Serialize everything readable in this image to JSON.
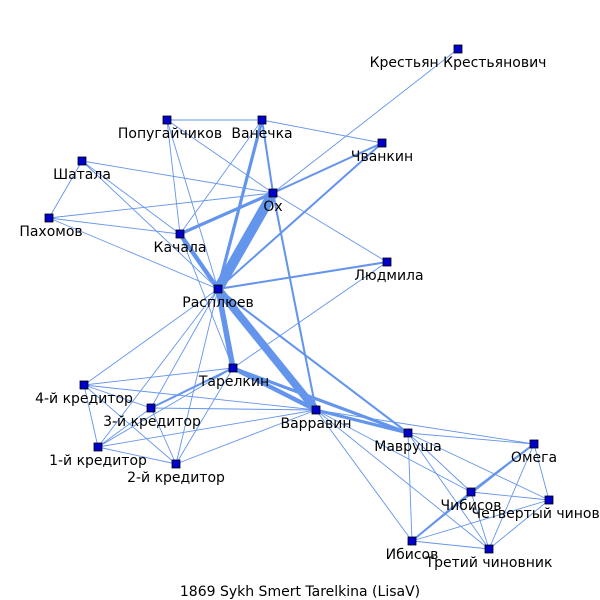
{
  "caption": "1869  Sykh  Smert  Tarelkina  (LisaV)",
  "colors": {
    "node_fill": "#0000cc",
    "node_stroke": "#000000",
    "edge": "#6495ed"
  },
  "nodes": [
    {
      "id": "krestyan",
      "label": "Крестьян Крестьянович"
    },
    {
      "id": "popugaychikov",
      "label": "Попугайчиков"
    },
    {
      "id": "vanechka",
      "label": "Ванечка"
    },
    {
      "id": "chvankin",
      "label": "Чванкин"
    },
    {
      "id": "shatala",
      "label": "Шатала"
    },
    {
      "id": "okh",
      "label": "Ох"
    },
    {
      "id": "pakhomov",
      "label": "Пахомов"
    },
    {
      "id": "kachala",
      "label": "Качала"
    },
    {
      "id": "lyudmila",
      "label": "Людмила"
    },
    {
      "id": "raspluev",
      "label": "Расплюев"
    },
    {
      "id": "tarelkin",
      "label": "Тарелкин"
    },
    {
      "id": "kreditor4",
      "label": "4-й кредитор"
    },
    {
      "id": "kreditor3",
      "label": "3-й кредитор"
    },
    {
      "id": "varravin",
      "label": "Варравин"
    },
    {
      "id": "mavrusha",
      "label": "Мавруша"
    },
    {
      "id": "omega",
      "label": "Омега"
    },
    {
      "id": "kreditor1",
      "label": "1-й кредитор"
    },
    {
      "id": "kreditor2",
      "label": "2-й кредитор"
    },
    {
      "id": "chibisov",
      "label": "Чибисов"
    },
    {
      "id": "chinovnik4",
      "label": "Четвертый чиновник"
    },
    {
      "id": "ibisov",
      "label": "Ибисов"
    },
    {
      "id": "chinovnik3",
      "label": "Третий чиновник"
    }
  ],
  "edges": [
    {
      "source": "krestyan",
      "target": "okh",
      "weight": 1
    },
    {
      "source": "popugaychikov",
      "target": "vanechka",
      "weight": 1
    },
    {
      "source": "popugaychikov",
      "target": "okh",
      "weight": 1
    },
    {
      "source": "popugaychikov",
      "target": "kachala",
      "weight": 1
    },
    {
      "source": "popugaychikov",
      "target": "raspluev",
      "weight": 1
    },
    {
      "source": "vanechka",
      "target": "chvankin",
      "weight": 1
    },
    {
      "source": "vanechka",
      "target": "okh",
      "weight": 2
    },
    {
      "source": "vanechka",
      "target": "kachala",
      "weight": 1
    },
    {
      "source": "vanechka",
      "target": "raspluev",
      "weight": 3
    },
    {
      "source": "chvankin",
      "target": "okh",
      "weight": 2
    },
    {
      "source": "chvankin",
      "target": "raspluev",
      "weight": 2
    },
    {
      "source": "shatala",
      "target": "okh",
      "weight": 1
    },
    {
      "source": "shatala",
      "target": "kachala",
      "weight": 1
    },
    {
      "source": "shatala",
      "target": "raspluev",
      "weight": 1
    },
    {
      "source": "shatala",
      "target": "pakhomov",
      "weight": 1
    },
    {
      "source": "pakhomov",
      "target": "okh",
      "weight": 1
    },
    {
      "source": "pakhomov",
      "target": "kachala",
      "weight": 1
    },
    {
      "source": "pakhomov",
      "target": "raspluev",
      "weight": 1
    },
    {
      "source": "okh",
      "target": "kachala",
      "weight": 3
    },
    {
      "source": "okh",
      "target": "raspluev",
      "weight": 9
    },
    {
      "source": "okh",
      "target": "lyudmila",
      "weight": 1
    },
    {
      "source": "okh",
      "target": "varravin",
      "weight": 2
    },
    {
      "source": "kachala",
      "target": "raspluev",
      "weight": 4
    },
    {
      "source": "kachala",
      "target": "tarelkin",
      "weight": 1
    },
    {
      "source": "lyudmila",
      "target": "raspluev",
      "weight": 2
    },
    {
      "source": "lyudmila",
      "target": "tarelkin",
      "weight": 1
    },
    {
      "source": "raspluev",
      "target": "tarelkin",
      "weight": 5
    },
    {
      "source": "raspluev",
      "target": "varravin",
      "weight": 7
    },
    {
      "source": "raspluev",
      "target": "mavrusha",
      "weight": 2
    },
    {
      "source": "raspluev",
      "target": "kreditor4",
      "weight": 1
    },
    {
      "source": "raspluev",
      "target": "kreditor3",
      "weight": 1
    },
    {
      "source": "raspluev",
      "target": "kreditor1",
      "weight": 1
    },
    {
      "source": "raspluev",
      "target": "kreditor2",
      "weight": 1
    },
    {
      "source": "tarelkin",
      "target": "varravin",
      "weight": 4
    },
    {
      "source": "tarelkin",
      "target": "mavrusha",
      "weight": 3
    },
    {
      "source": "tarelkin",
      "target": "kreditor4",
      "weight": 1
    },
    {
      "source": "tarelkin",
      "target": "kreditor3",
      "weight": 2
    },
    {
      "source": "tarelkin",
      "target": "kreditor1",
      "weight": 1
    },
    {
      "source": "tarelkin",
      "target": "kreditor2",
      "weight": 1
    },
    {
      "source": "kreditor4",
      "target": "kreditor3",
      "weight": 1
    },
    {
      "source": "kreditor4",
      "target": "kreditor1",
      "weight": 1
    },
    {
      "source": "kreditor4",
      "target": "kreditor2",
      "weight": 1
    },
    {
      "source": "kreditor4",
      "target": "varravin",
      "weight": 1
    },
    {
      "source": "kreditor3",
      "target": "kreditor1",
      "weight": 1
    },
    {
      "source": "kreditor3",
      "target": "kreditor2",
      "weight": 1
    },
    {
      "source": "kreditor3",
      "target": "varravin",
      "weight": 1
    },
    {
      "source": "kreditor1",
      "target": "kreditor2",
      "weight": 1
    },
    {
      "source": "kreditor1",
      "target": "varravin",
      "weight": 1
    },
    {
      "source": "kreditor2",
      "target": "varravin",
      "weight": 1
    },
    {
      "source": "varravin",
      "target": "mavrusha",
      "weight": 3
    },
    {
      "source": "varravin",
      "target": "omega",
      "weight": 1
    },
    {
      "source": "varravin",
      "target": "chibisov",
      "weight": 1
    },
    {
      "source": "varravin",
      "target": "ibisov",
      "weight": 1
    },
    {
      "source": "varravin",
      "target": "chinovnik3",
      "weight": 1
    },
    {
      "source": "mavrusha",
      "target": "omega",
      "weight": 1
    },
    {
      "source": "mavrusha",
      "target": "chibisov",
      "weight": 1
    },
    {
      "source": "mavrusha",
      "target": "chinovnik4",
      "weight": 1
    },
    {
      "source": "mavrusha",
      "target": "ibisov",
      "weight": 1
    },
    {
      "source": "mavrusha",
      "target": "chinovnik3",
      "weight": 1
    },
    {
      "source": "omega",
      "target": "chibisov",
      "weight": 2
    },
    {
      "source": "omega",
      "target": "chinovnik4",
      "weight": 1
    },
    {
      "source": "omega",
      "target": "ibisov",
      "weight": 1
    },
    {
      "source": "omega",
      "target": "chinovnik3",
      "weight": 1
    },
    {
      "source": "chibisov",
      "target": "chinovnik4",
      "weight": 1
    },
    {
      "source": "chibisov",
      "target": "ibisov",
      "weight": 2
    },
    {
      "source": "chibisov",
      "target": "chinovnik3",
      "weight": 1
    },
    {
      "source": "chinovnik4",
      "target": "ibisov",
      "weight": 1
    },
    {
      "source": "chinovnik4",
      "target": "chinovnik3",
      "weight": 1
    },
    {
      "source": "ibisov",
      "target": "chinovnik3",
      "weight": 1
    }
  ]
}
